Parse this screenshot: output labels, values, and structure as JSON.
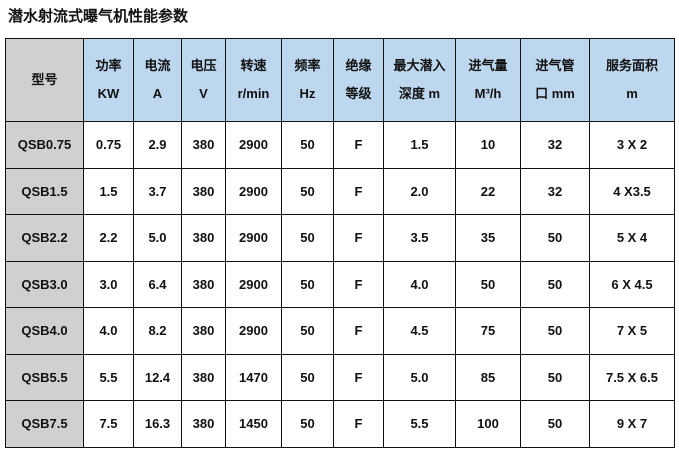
{
  "title": "潜水射流式曝气机性能参数",
  "headers": [
    {
      "l1": "型号",
      "l2": ""
    },
    {
      "l1": "功率",
      "l2": "KW"
    },
    {
      "l1": "电流",
      "l2": "A"
    },
    {
      "l1": "电压",
      "l2": "V"
    },
    {
      "l1": "转速",
      "l2": "r/min"
    },
    {
      "l1": "频率",
      "l2": "Hz"
    },
    {
      "l1": "绝缘",
      "l2": "等级"
    },
    {
      "l1": "最大潜入",
      "l2": "深度 m"
    },
    {
      "l1": "进气量",
      "l2": "M³/h"
    },
    {
      "l1": "进气管",
      "l2": "口 mm"
    },
    {
      "l1": "服务面积",
      "l2": "m"
    }
  ],
  "rows": [
    [
      "QSB0.75",
      "0.75",
      "2.9",
      "380",
      "2900",
      "50",
      "F",
      "1.5",
      "10",
      "32",
      "3 X 2"
    ],
    [
      "QSB1.5",
      "1.5",
      "3.7",
      "380",
      "2900",
      "50",
      "F",
      "2.0",
      "22",
      "32",
      "4 X3.5"
    ],
    [
      "QSB2.2",
      "2.2",
      "5.0",
      "380",
      "2900",
      "50",
      "F",
      "3.5",
      "35",
      "50",
      "5 X 4"
    ],
    [
      "QSB3.0",
      "3.0",
      "6.4",
      "380",
      "2900",
      "50",
      "F",
      "4.0",
      "50",
      "50",
      "6 X 4.5"
    ],
    [
      "QSB4.0",
      "4.0",
      "8.2",
      "380",
      "2900",
      "50",
      "F",
      "4.5",
      "75",
      "50",
      "7 X 5"
    ],
    [
      "QSB5.5",
      "5.5",
      "12.4",
      "380",
      "1470",
      "50",
      "F",
      "5.0",
      "85",
      "50",
      "7.5 X 6.5"
    ],
    [
      "QSB7.5",
      "7.5",
      "16.3",
      "380",
      "1450",
      "50",
      "F",
      "5.5",
      "100",
      "50",
      "9 X 7"
    ]
  ]
}
